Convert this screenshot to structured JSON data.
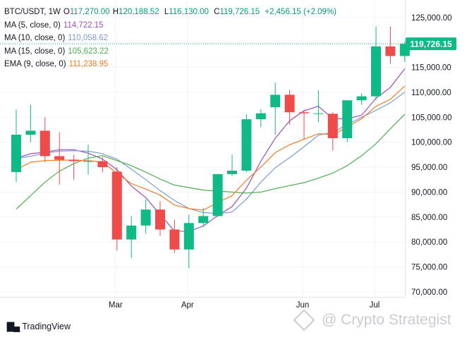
{
  "header": {
    "symbol": "BTC/USDT, 1W",
    "open_label": "O",
    "open": "117,270.00",
    "high_label": "H",
    "high": "120,188.52",
    "low_label": "L",
    "low": "116,130.00",
    "close_label": "C",
    "close": "119,726.15",
    "change": "+2,456.15 (+2.09%)"
  },
  "indicators": [
    {
      "label": "MA (5, close, 0)",
      "value": "114,722.15",
      "color": "#9c4fbd"
    },
    {
      "label": "MA (10, close, 0)",
      "value": "110,058.62",
      "color": "#7e9bd0"
    },
    {
      "label": "MA (15, close, 0)",
      "value": "105,623.22",
      "color": "#4caf50"
    },
    {
      "label": "EMA (9, close, 0)",
      "value": "111,238.95",
      "color": "#f07b23"
    }
  ],
  "price_tag": "119,726.15",
  "branding": {
    "logo_text": "TradingView",
    "watermark": "@ Crypto Strategist"
  },
  "colors": {
    "up": "#26a69a",
    "down": "#ef5350",
    "up_fill": "#0fba86",
    "down_fill": "#f04b4b",
    "grid": "#f0f3fa",
    "text": "#131722",
    "price_tag": "#0fba86"
  },
  "chart_data": {
    "type": "candlestick",
    "interval": "1W",
    "y_ticks": [
      70000,
      75000,
      80000,
      85000,
      90000,
      95000,
      100000,
      105000,
      110000,
      115000,
      120000,
      125000
    ],
    "y_tick_labels": [
      "70,000.00",
      "75,000.00",
      "80,000.00",
      "85,000.00",
      "90,000.00",
      "95,000.00",
      "100,000.00",
      "105,000.00",
      "110,000.00",
      "115,000.00",
      "120,000.00",
      "125,000.00"
    ],
    "ylim": [
      69000,
      128500
    ],
    "x_tick_labels": [
      {
        "label": "Mar",
        "index": 7
      },
      {
        "label": "Apr",
        "index": 12
      },
      {
        "label": "Jun",
        "index": 20
      },
      {
        "label": "Jul",
        "index": 25
      }
    ],
    "candles": [
      {
        "o": 94000,
        "h": 106500,
        "l": 92000,
        "c": 101500
      },
      {
        "o": 101500,
        "h": 107500,
        "l": 100000,
        "c": 102300
      },
      {
        "o": 102300,
        "h": 105000,
        "l": 96000,
        "c": 97200
      },
      {
        "o": 97200,
        "h": 102000,
        "l": 91500,
        "c": 96500
      },
      {
        "o": 96500,
        "h": 97500,
        "l": 92500,
        "c": 96200
      },
      {
        "o": 96200,
        "h": 99500,
        "l": 93500,
        "c": 96200
      },
      {
        "o": 96200,
        "h": 97000,
        "l": 94000,
        "c": 95000
      },
      {
        "o": 94100,
        "h": 95000,
        "l": 78300,
        "c": 80500
      },
      {
        "o": 80500,
        "h": 85200,
        "l": 76800,
        "c": 83300
      },
      {
        "o": 83300,
        "h": 88500,
        "l": 81700,
        "c": 86500
      },
      {
        "o": 86500,
        "h": 88200,
        "l": 81200,
        "c": 82500
      },
      {
        "o": 82500,
        "h": 84500,
        "l": 77800,
        "c": 78500
      },
      {
        "o": 78500,
        "h": 85500,
        "l": 74700,
        "c": 83800
      },
      {
        "o": 83800,
        "h": 86800,
        "l": 83000,
        "c": 85200
      },
      {
        "o": 85200,
        "h": 93600,
        "l": 85000,
        "c": 93600
      },
      {
        "o": 93600,
        "h": 97500,
        "l": 93200,
        "c": 94300
      },
      {
        "o": 94300,
        "h": 105600,
        "l": 94000,
        "c": 104600
      },
      {
        "o": 104600,
        "h": 106600,
        "l": 103000,
        "c": 105800
      },
      {
        "o": 107000,
        "h": 112000,
        "l": 101500,
        "c": 109500
      },
      {
        "o": 109500,
        "h": 110500,
        "l": 103500,
        "c": 106000
      },
      {
        "o": 106000,
        "h": 106500,
        "l": 100600,
        "c": 105800
      },
      {
        "o": 105800,
        "h": 110400,
        "l": 104000,
        "c": 105800
      },
      {
        "o": 105700,
        "h": 106000,
        "l": 98300,
        "c": 100800
      },
      {
        "o": 100800,
        "h": 108400,
        "l": 100000,
        "c": 108400
      },
      {
        "o": 108400,
        "h": 109800,
        "l": 107500,
        "c": 109200
      },
      {
        "o": 109200,
        "h": 123200,
        "l": 108500,
        "c": 119200
      },
      {
        "o": 119200,
        "h": 123200,
        "l": 115700,
        "c": 117270
      },
      {
        "o": 117270,
        "h": 120188.52,
        "l": 116130,
        "c": 119726.15
      }
    ],
    "series": [
      {
        "name": "MA (5, close, 0)",
        "color": "#9c4fbd",
        "values": [
          96800,
          97700,
          98000,
          98500,
          98500,
          97800,
          96600,
          94500,
          91200,
          88900,
          85500,
          82200,
          82100,
          83200,
          85300,
          87100,
          90800,
          96200,
          100800,
          104300,
          106300,
          107200,
          104700,
          104700,
          105400,
          108800,
          111000,
          114722
        ]
      },
      {
        "name": "MA (10, close, 0)",
        "color": "#7e9bd0",
        "values": [
          96700,
          97200,
          97800,
          98200,
          98300,
          98200,
          97700,
          96600,
          94600,
          92500,
          90300,
          88300,
          86700,
          85900,
          85700,
          86000,
          88600,
          92000,
          94900,
          96900,
          99100,
          101400,
          102000,
          103500,
          105000,
          106400,
          107900,
          110058
        ]
      },
      {
        "name": "MA (15, close, 0)",
        "color": "#4caf50",
        "values": [
          86600,
          89300,
          92000,
          94200,
          95700,
          96800,
          97300,
          96300,
          95300,
          94000,
          92600,
          91400,
          90900,
          90400,
          90200,
          90000,
          89800,
          90000,
          90700,
          91300,
          91900,
          92800,
          93800,
          95300,
          97300,
          99700,
          102700,
          105623
        ]
      },
      {
        "name": "EMA (9, close, 0)",
        "color": "#f07b23",
        "values": [
          94500,
          96000,
          96300,
          96400,
          96400,
          96300,
          96000,
          93800,
          91700,
          90600,
          89400,
          87400,
          86700,
          86400,
          87900,
          89300,
          92400,
          95000,
          97900,
          99500,
          100600,
          101700,
          101500,
          103000,
          104700,
          107200,
          108600,
          111239
        ]
      }
    ]
  }
}
